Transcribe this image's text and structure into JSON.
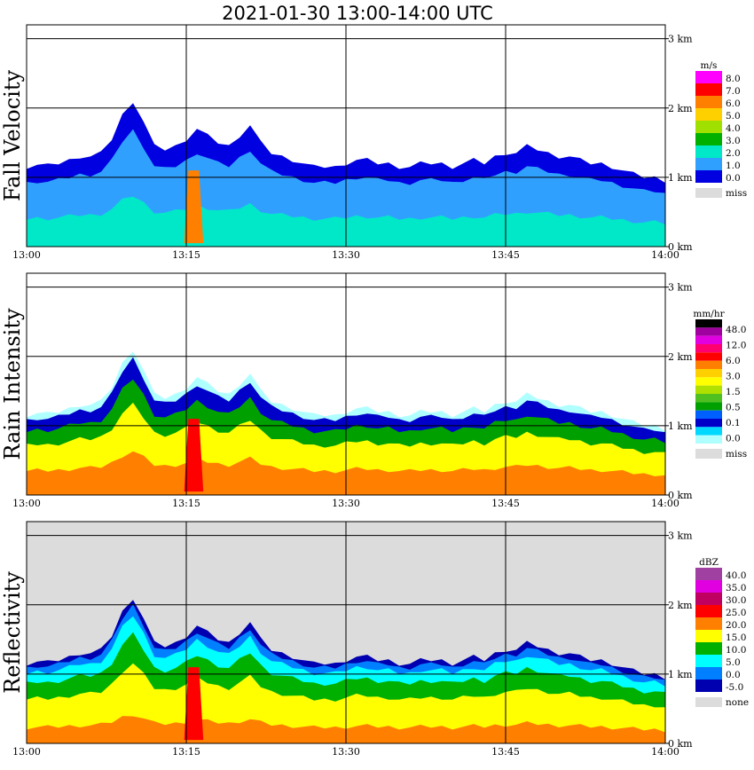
{
  "title": "2021-01-30   13:00-14:00 UTC",
  "chart_data": [
    {
      "type": "heatmap",
      "ylabel": "Fall Velocity",
      "x_ticks": [
        "13:00",
        "13:15",
        "13:30",
        "13:45",
        "14:00"
      ],
      "y_ticks": [
        "0 km",
        "1 km",
        "2 km",
        "3 km"
      ],
      "xlim": [
        "13:00",
        "14:00"
      ],
      "ylim_km": [
        0,
        3.2
      ],
      "grid": true,
      "legend_position": "right",
      "colorbar": {
        "unit": "m/s",
        "labels": [
          "8.0",
          "7.0",
          "6.0",
          "5.0",
          "4.0",
          "3.0",
          "2.0",
          "1.0",
          "0.0"
        ],
        "colors": [
          "#ff00ff",
          "#ff0000",
          "#ff8000",
          "#ffd000",
          "#a0e000",
          "#00b000",
          "#00e8c8",
          "#30a0ff",
          "#0000e0"
        ],
        "missing_label": "miss",
        "missing_color": "#dcdcdc"
      },
      "background": "#ffffff",
      "echo_top_km": [
        1.15,
        1.18,
        1.17,
        1.2,
        1.25,
        1.3,
        1.3,
        1.35,
        1.55,
        1.9,
        2.1,
        1.8,
        1.45,
        1.4,
        1.45,
        1.55,
        1.7,
        1.6,
        1.5,
        1.45,
        1.6,
        1.75,
        1.5,
        1.35,
        1.3,
        1.25,
        1.2,
        1.15,
        1.15,
        1.15,
        1.2,
        1.25,
        1.25,
        1.2,
        1.2,
        1.15,
        1.15,
        1.2,
        1.2,
        1.2,
        1.15,
        1.2,
        1.25,
        1.2,
        1.3,
        1.35,
        1.35,
        1.45,
        1.4,
        1.35,
        1.3,
        1.3,
        1.25,
        1.2,
        1.2,
        1.15,
        1.1,
        1.05,
        1.0,
        1.0,
        0.95
      ]
    },
    {
      "type": "heatmap",
      "ylabel": "Rain Intensity",
      "x_ticks": [
        "13:00",
        "13:15",
        "13:30",
        "13:45",
        "14:00"
      ],
      "y_ticks": [
        "0 km",
        "1 km",
        "2 km",
        "3 km"
      ],
      "xlim": [
        "13:00",
        "14:00"
      ],
      "ylim_km": [
        0,
        3.2
      ],
      "grid": true,
      "legend_position": "right",
      "colorbar": {
        "unit": "mm/hr",
        "labels": [
          "48.0",
          "12.0",
          "6.0",
          "3.0",
          "1.5",
          "0.5",
          "0.1",
          "0.0"
        ],
        "colors": [
          "#000000",
          "#a000a0",
          "#e000e0",
          "#ff0070",
          "#ff0000",
          "#ff8000",
          "#ffd000",
          "#ffff00",
          "#b0e000",
          "#50c020",
          "#00a000",
          "#0060ff",
          "#0000c8",
          "#00d8ff",
          "#b0ffff"
        ],
        "missing_label": "miss",
        "missing_color": "#dcdcdc"
      },
      "background": "#ffffff",
      "echo_top_km": [
        1.15,
        1.18,
        1.17,
        1.2,
        1.25,
        1.3,
        1.3,
        1.35,
        1.55,
        1.9,
        2.1,
        1.8,
        1.45,
        1.4,
        1.45,
        1.55,
        1.7,
        1.6,
        1.5,
        1.45,
        1.6,
        1.75,
        1.5,
        1.35,
        1.3,
        1.25,
        1.2,
        1.15,
        1.15,
        1.15,
        1.2,
        1.25,
        1.25,
        1.2,
        1.2,
        1.15,
        1.15,
        1.2,
        1.2,
        1.2,
        1.15,
        1.2,
        1.25,
        1.2,
        1.3,
        1.35,
        1.35,
        1.45,
        1.4,
        1.35,
        1.3,
        1.3,
        1.25,
        1.2,
        1.2,
        1.15,
        1.1,
        1.05,
        1.0,
        1.0,
        0.95
      ]
    },
    {
      "type": "heatmap",
      "ylabel": "Reflectivity",
      "x_ticks": [
        "13:00",
        "13:15",
        "13:30",
        "13:45",
        "14:00"
      ],
      "y_ticks": [
        "0 km",
        "1 km",
        "2 km",
        "3 km"
      ],
      "xlim": [
        "13:00",
        "14:00"
      ],
      "ylim_km": [
        0,
        3.2
      ],
      "grid": true,
      "legend_position": "right",
      "colorbar": {
        "unit": "dBZ",
        "labels": [
          "40.0",
          "35.0",
          "30.0",
          "25.0",
          "20.0",
          "15.0",
          "10.0",
          "5.0",
          "0.0",
          "-5.0"
        ],
        "colors": [
          "#a040a0",
          "#e000e0",
          "#c00060",
          "#ff0000",
          "#ff8000",
          "#ffff00",
          "#00b000",
          "#00ffff",
          "#0080ff",
          "#0000b0"
        ],
        "missing_label": "none",
        "missing_color": "#dcdcdc"
      },
      "background": "#dcdcdc",
      "echo_top_km": [
        1.15,
        1.18,
        1.17,
        1.2,
        1.25,
        1.3,
        1.3,
        1.35,
        1.55,
        1.9,
        2.1,
        1.8,
        1.45,
        1.4,
        1.45,
        1.55,
        1.7,
        1.6,
        1.5,
        1.45,
        1.6,
        1.75,
        1.5,
        1.35,
        1.3,
        1.25,
        1.2,
        1.15,
        1.15,
        1.15,
        1.2,
        1.25,
        1.25,
        1.2,
        1.2,
        1.15,
        1.15,
        1.2,
        1.2,
        1.2,
        1.15,
        1.2,
        1.25,
        1.2,
        1.3,
        1.35,
        1.35,
        1.45,
        1.4,
        1.35,
        1.3,
        1.3,
        1.25,
        1.2,
        1.2,
        1.15,
        1.1,
        1.05,
        1.0,
        1.0,
        0.95
      ]
    }
  ]
}
